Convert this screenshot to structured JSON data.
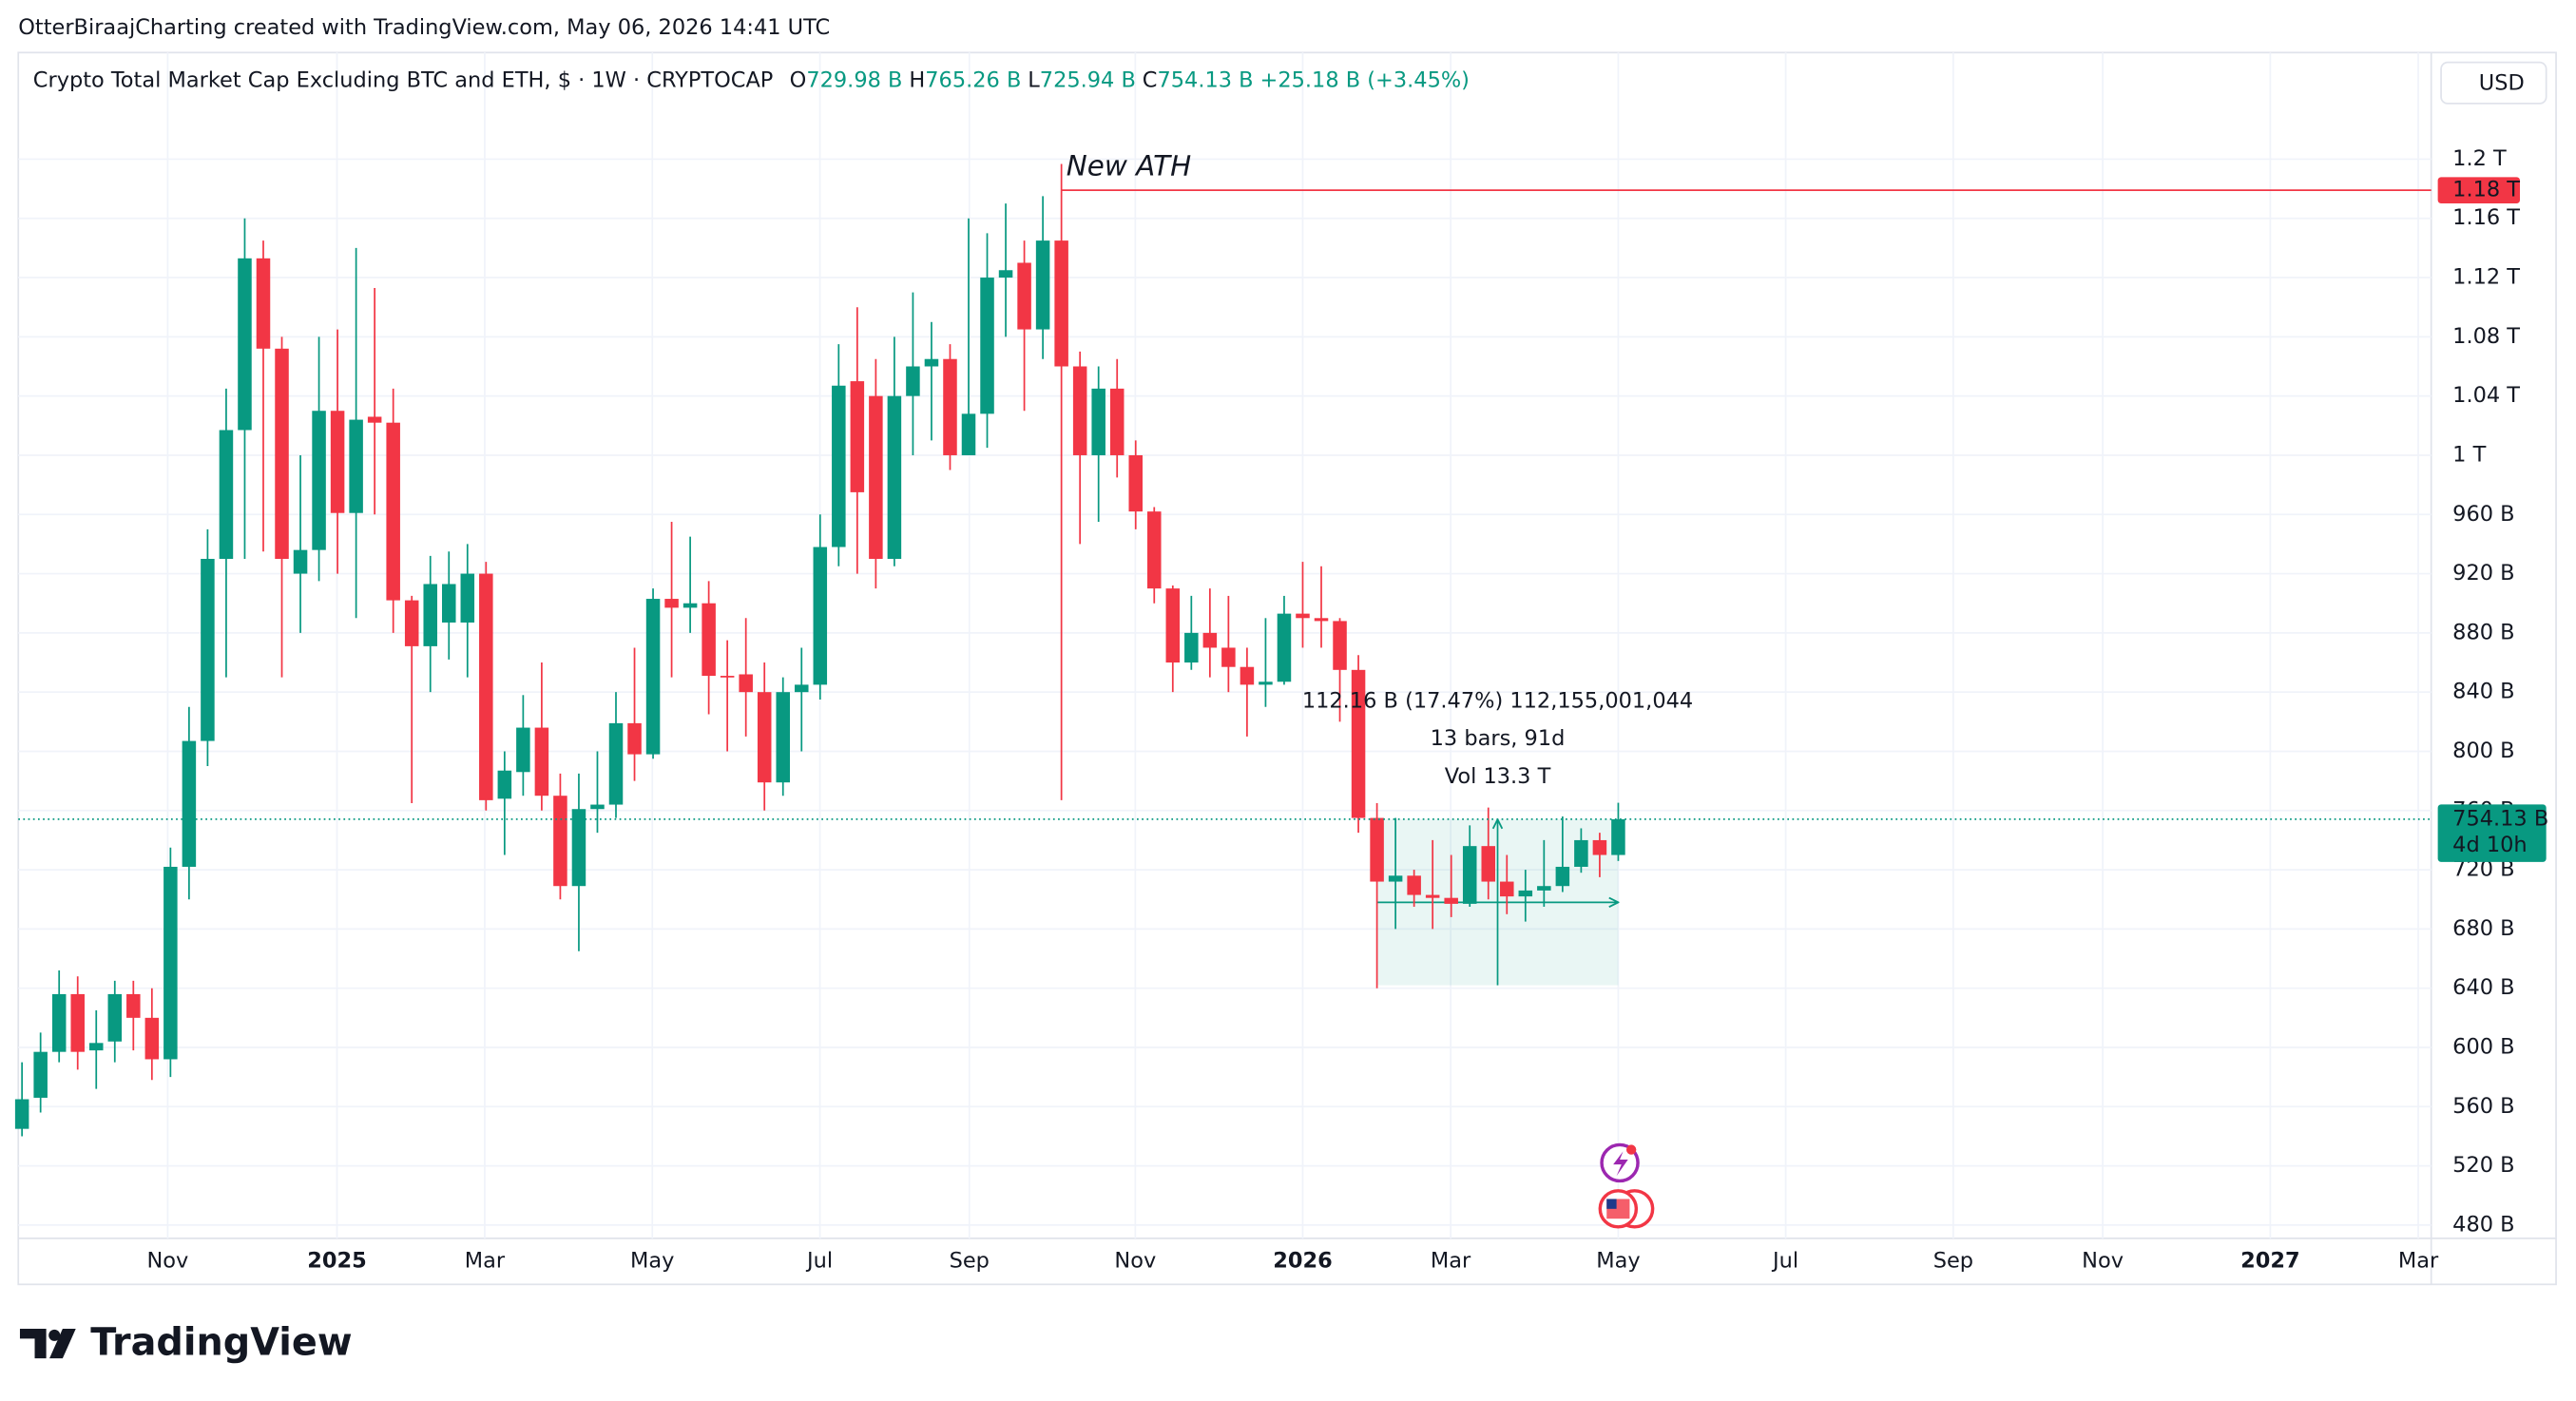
{
  "attribution": "OtterBiraajCharting created with TradingView.com, May 06, 2026 14:41 UTC",
  "watermark": "TradingView",
  "currency": "USD",
  "chart_data": {
    "type": "candlestick",
    "title": "Crypto Total Market Cap Excluding BTC and ETH, $ · 1W · CRYPTOCAP",
    "ohlc_letters": [
      "O",
      "H",
      "L",
      "C"
    ],
    "ohlc_values": [
      "729.98 B",
      "765.26 B",
      "725.94 B",
      "754.13 B"
    ],
    "change": "+25.18 B (+3.45%)",
    "up_color": "#089981",
    "down_color": "#f23645",
    "grid": true,
    "open": [
      545,
      566,
      597,
      636,
      598,
      604,
      636,
      620,
      592,
      722,
      807,
      930,
      1017,
      1133,
      1072,
      920,
      936,
      1030,
      961,
      1026,
      1022,
      902,
      871,
      887,
      887,
      920,
      768,
      786,
      816,
      770,
      709,
      761,
      764,
      819,
      798,
      903,
      897,
      900,
      851,
      852,
      840,
      779,
      840,
      845,
      938,
      1050,
      1040,
      930,
      1040,
      1060,
      1065,
      1000,
      1028,
      1120,
      1130,
      1085,
      1145,
      1060,
      1000,
      1045,
      1000,
      962,
      910,
      860,
      880,
      870,
      857,
      845,
      847,
      893,
      890,
      888,
      855,
      755,
      712,
      716,
      703,
      701,
      697,
      736,
      712,
      702,
      706,
      709,
      722,
      740,
      729.98
    ],
    "high": [
      590,
      610,
      652,
      648,
      625,
      645,
      645,
      640,
      735,
      830,
      950,
      1045,
      1160,
      1145,
      1080,
      1000,
      1080,
      1085,
      1140,
      1113,
      1045,
      905,
      932,
      935,
      940,
      928,
      800,
      838,
      860,
      785,
      785,
      800,
      840,
      870,
      910,
      955,
      945,
      915,
      875,
      890,
      860,
      850,
      870,
      960,
      1075,
      1100,
      1065,
      1080,
      1110,
      1090,
      1075,
      1160,
      1150,
      1170,
      1145,
      1175,
      1179,
      1070,
      1060,
      1065,
      1010,
      965,
      912,
      905,
      910,
      905,
      870,
      890,
      905,
      928,
      925,
      890,
      865,
      765,
      755,
      720,
      740,
      730,
      750,
      762,
      730,
      720,
      740,
      756,
      748,
      745,
      765.26
    ],
    "low": [
      540,
      556,
      590,
      585,
      572,
      590,
      598,
      578,
      580,
      700,
      790,
      850,
      930,
      935,
      850,
      880,
      915,
      920,
      890,
      960,
      880,
      765,
      840,
      862,
      850,
      760,
      730,
      770,
      760,
      700,
      665,
      745,
      755,
      780,
      795,
      850,
      880,
      825,
      800,
      810,
      760,
      770,
      800,
      835,
      925,
      920,
      910,
      925,
      1000,
      1010,
      990,
      1000,
      1005,
      1080,
      1030,
      1065,
      767,
      940,
      955,
      985,
      950,
      900,
      840,
      855,
      850,
      840,
      810,
      830,
      845,
      870,
      870,
      820,
      745,
      640,
      680,
      695,
      680,
      688,
      695,
      700,
      690,
      685,
      695,
      705,
      718,
      715,
      725.94
    ],
    "close": [
      565,
      597,
      636,
      597,
      603,
      636,
      620,
      592,
      722,
      807,
      930,
      1017,
      1133,
      1072,
      930,
      936,
      1030,
      961,
      1024,
      1022,
      902,
      871,
      913,
      913,
      920,
      767,
      787,
      816,
      770,
      709,
      761,
      764,
      819,
      798,
      903,
      897,
      900,
      851,
      850,
      840,
      779,
      840,
      845,
      938,
      1047,
      975,
      930,
      1040,
      1060,
      1065,
      1000,
      1028,
      1120,
      1125,
      1085,
      1145,
      1060,
      1000,
      1045,
      1000,
      962,
      910,
      860,
      880,
      870,
      857,
      845,
      847,
      893,
      890,
      888,
      855,
      755,
      712,
      716,
      703,
      701,
      697,
      736,
      712,
      702,
      706,
      709,
      722,
      740,
      730,
      754.13
    ],
    "xlim": [
      -0.2,
      129.8
    ],
    "xticks": [
      {
        "value": 7.85,
        "label": "Nov"
      },
      {
        "value": 16.97,
        "label": "2025"
      },
      {
        "value": 24.93,
        "label": "Mar"
      },
      {
        "value": 33.96,
        "label": "May"
      },
      {
        "value": 42.99,
        "label": "Jul"
      },
      {
        "value": 51.04,
        "label": "Sep"
      },
      {
        "value": 59.98,
        "label": "Nov"
      },
      {
        "value": 69.0,
        "label": "2026"
      },
      {
        "value": 76.97,
        "label": "Mar"
      },
      {
        "value": 86.0,
        "label": "May"
      },
      {
        "value": 95.02,
        "label": "Jul"
      },
      {
        "value": 104.05,
        "label": "Sep"
      },
      {
        "value": 112.1,
        "label": "Nov"
      },
      {
        "value": 121.13,
        "label": "2027"
      },
      {
        "value": 129.1,
        "label": "Mar"
      }
    ],
    "ylim": [
      471,
      1272
    ],
    "yticks": [
      {
        "value": 1200,
        "label": "1.2 T"
      },
      {
        "value": 1160,
        "label": "1.16 T"
      },
      {
        "value": 1120,
        "label": "1.12 T"
      },
      {
        "value": 1080,
        "label": "1.08 T"
      },
      {
        "value": 1040,
        "label": "1.04 T"
      },
      {
        "value": 1000,
        "label": "1 T"
      },
      {
        "value": 960,
        "label": "960 B"
      },
      {
        "value": 920,
        "label": "920 B"
      },
      {
        "value": 880,
        "label": "880 B"
      },
      {
        "value": 840,
        "label": "840 B"
      },
      {
        "value": 800,
        "label": "800 B"
      },
      {
        "value": 760,
        "label": "760 B"
      },
      {
        "value": 720,
        "label": "720 B"
      },
      {
        "value": 680,
        "label": "680 B"
      },
      {
        "value": 640,
        "label": "640 B"
      },
      {
        "value": 600,
        "label": "600 B"
      },
      {
        "value": 560,
        "label": "560 B"
      },
      {
        "value": 520,
        "label": "520 B"
      },
      {
        "value": 480,
        "label": "480 B"
      }
    ],
    "last_price": {
      "value": 754.13,
      "label": "754.13 B",
      "countdown": "4d 10h"
    },
    "ath": {
      "value": 1179,
      "label": "1.18 T",
      "text": "New ATH",
      "start": 56
    },
    "measure": {
      "x": [
        73,
        86
      ],
      "y": [
        642,
        754
      ],
      "lines": [
        "112.16 B (17.47%) 112,155,001,044",
        "13 bars, 91d",
        "Vol 13.3 T"
      ]
    }
  }
}
